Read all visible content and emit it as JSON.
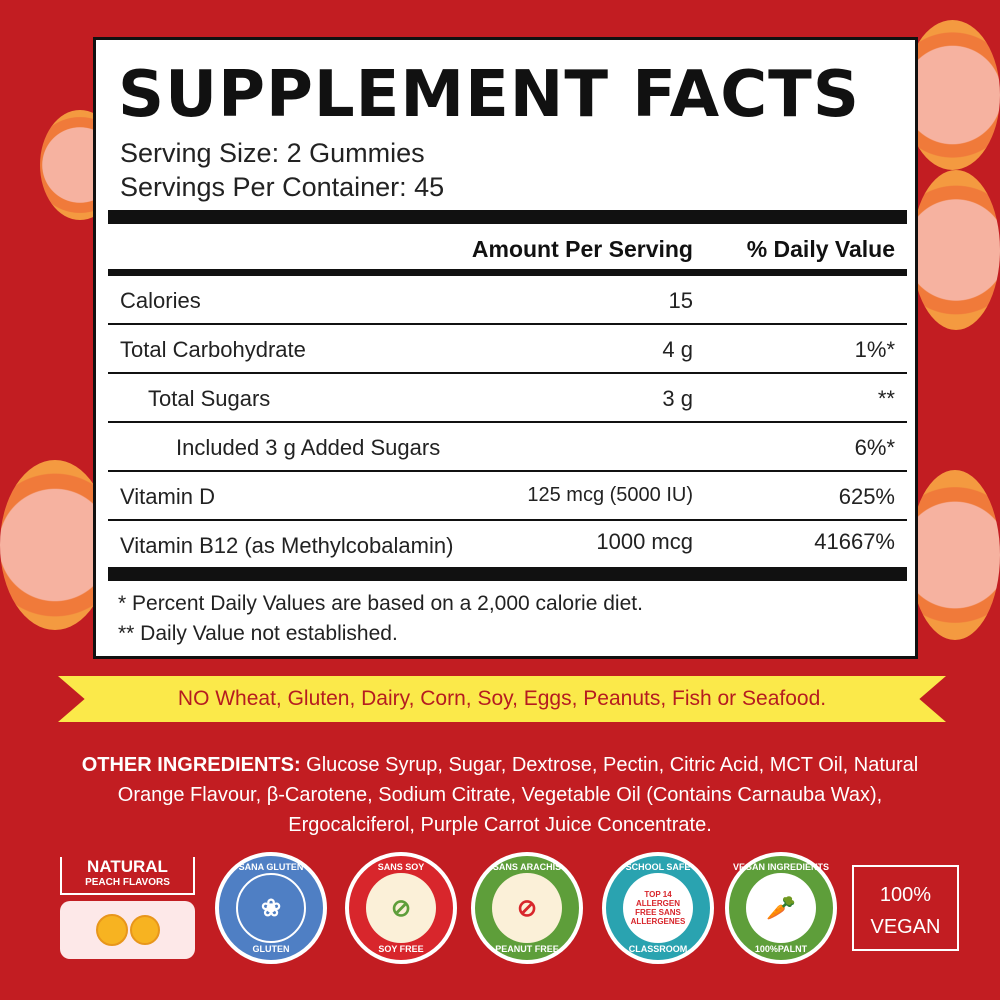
{
  "title": "SUPPLEMENT FACTS",
  "serving_size": "Serving Size: 2 Gummies",
  "servings_per_container": "Servings Per Container: 45",
  "headers": {
    "amount": "Amount Per Serving",
    "dv": "% Daily Value"
  },
  "rows": [
    {
      "name": "Calories",
      "amount": "15",
      "dv": ""
    },
    {
      "name": "Total Carbohydrate",
      "amount": "4 g",
      "dv": "1%*"
    },
    {
      "name": "Total Sugars",
      "amount": "3 g",
      "dv": "**"
    },
    {
      "name": "Included 3 g Added Sugars",
      "amount": "",
      "dv": "6%*"
    },
    {
      "name": "Vitamin D",
      "amount": "125 mcg (5000 IU)",
      "dv": "625%"
    },
    {
      "name": "Vitamin B12 (as Methylcobalamin)",
      "amount": "1000 mcg",
      "dv": "41667%"
    }
  ],
  "footnotes": [
    "* Percent Daily Values are based on a 2,000 calorie diet.",
    "** Daily Value not established."
  ],
  "banner": "NO Wheat, Gluten, Dairy, Corn, Soy, Eggs, Peanuts, Fish or Seafood.",
  "ingredients": {
    "label": "OTHER INGREDIENTS:",
    "text": " Glucose Syrup, Sugar, Dextrose, Pectin, Citric Acid, MCT Oil, Natural Orange Flavour, β-Carotene, Sodium Citrate, Vegetable Oil (Contains Carnauba Wax), Ergocalciferol, Purple Carrot Juice Concentrate."
  },
  "badges": {
    "natural": {
      "line1": "NATURAL",
      "line2": "PEACH FLAVORS"
    },
    "gluten": {
      "top": "SANA GLUTEN",
      "bottom": "GLUTEN",
      "color": "#4f7fc4"
    },
    "soy": {
      "top": "SANS SOY",
      "bottom": "SOY FREE",
      "color": "#d8262c"
    },
    "peanut": {
      "top": "SANS ARACHIS",
      "bottom": "PEANUT FREE",
      "color": "#5e9e3a"
    },
    "allergen": {
      "top": "SCHOOL SAFE",
      "bottom": "CLASSROOM",
      "center": "TOP 14 ALLERGEN FREE SANS ALLERGENES",
      "color": "#2aa3b0"
    },
    "vegan_ing": {
      "top": "VEGAN INGREDIENTS",
      "bottom": "100%PALNT",
      "color": "#5e9e3a"
    },
    "vegan": {
      "line1": "100%",
      "line2": "VEGAN"
    }
  }
}
